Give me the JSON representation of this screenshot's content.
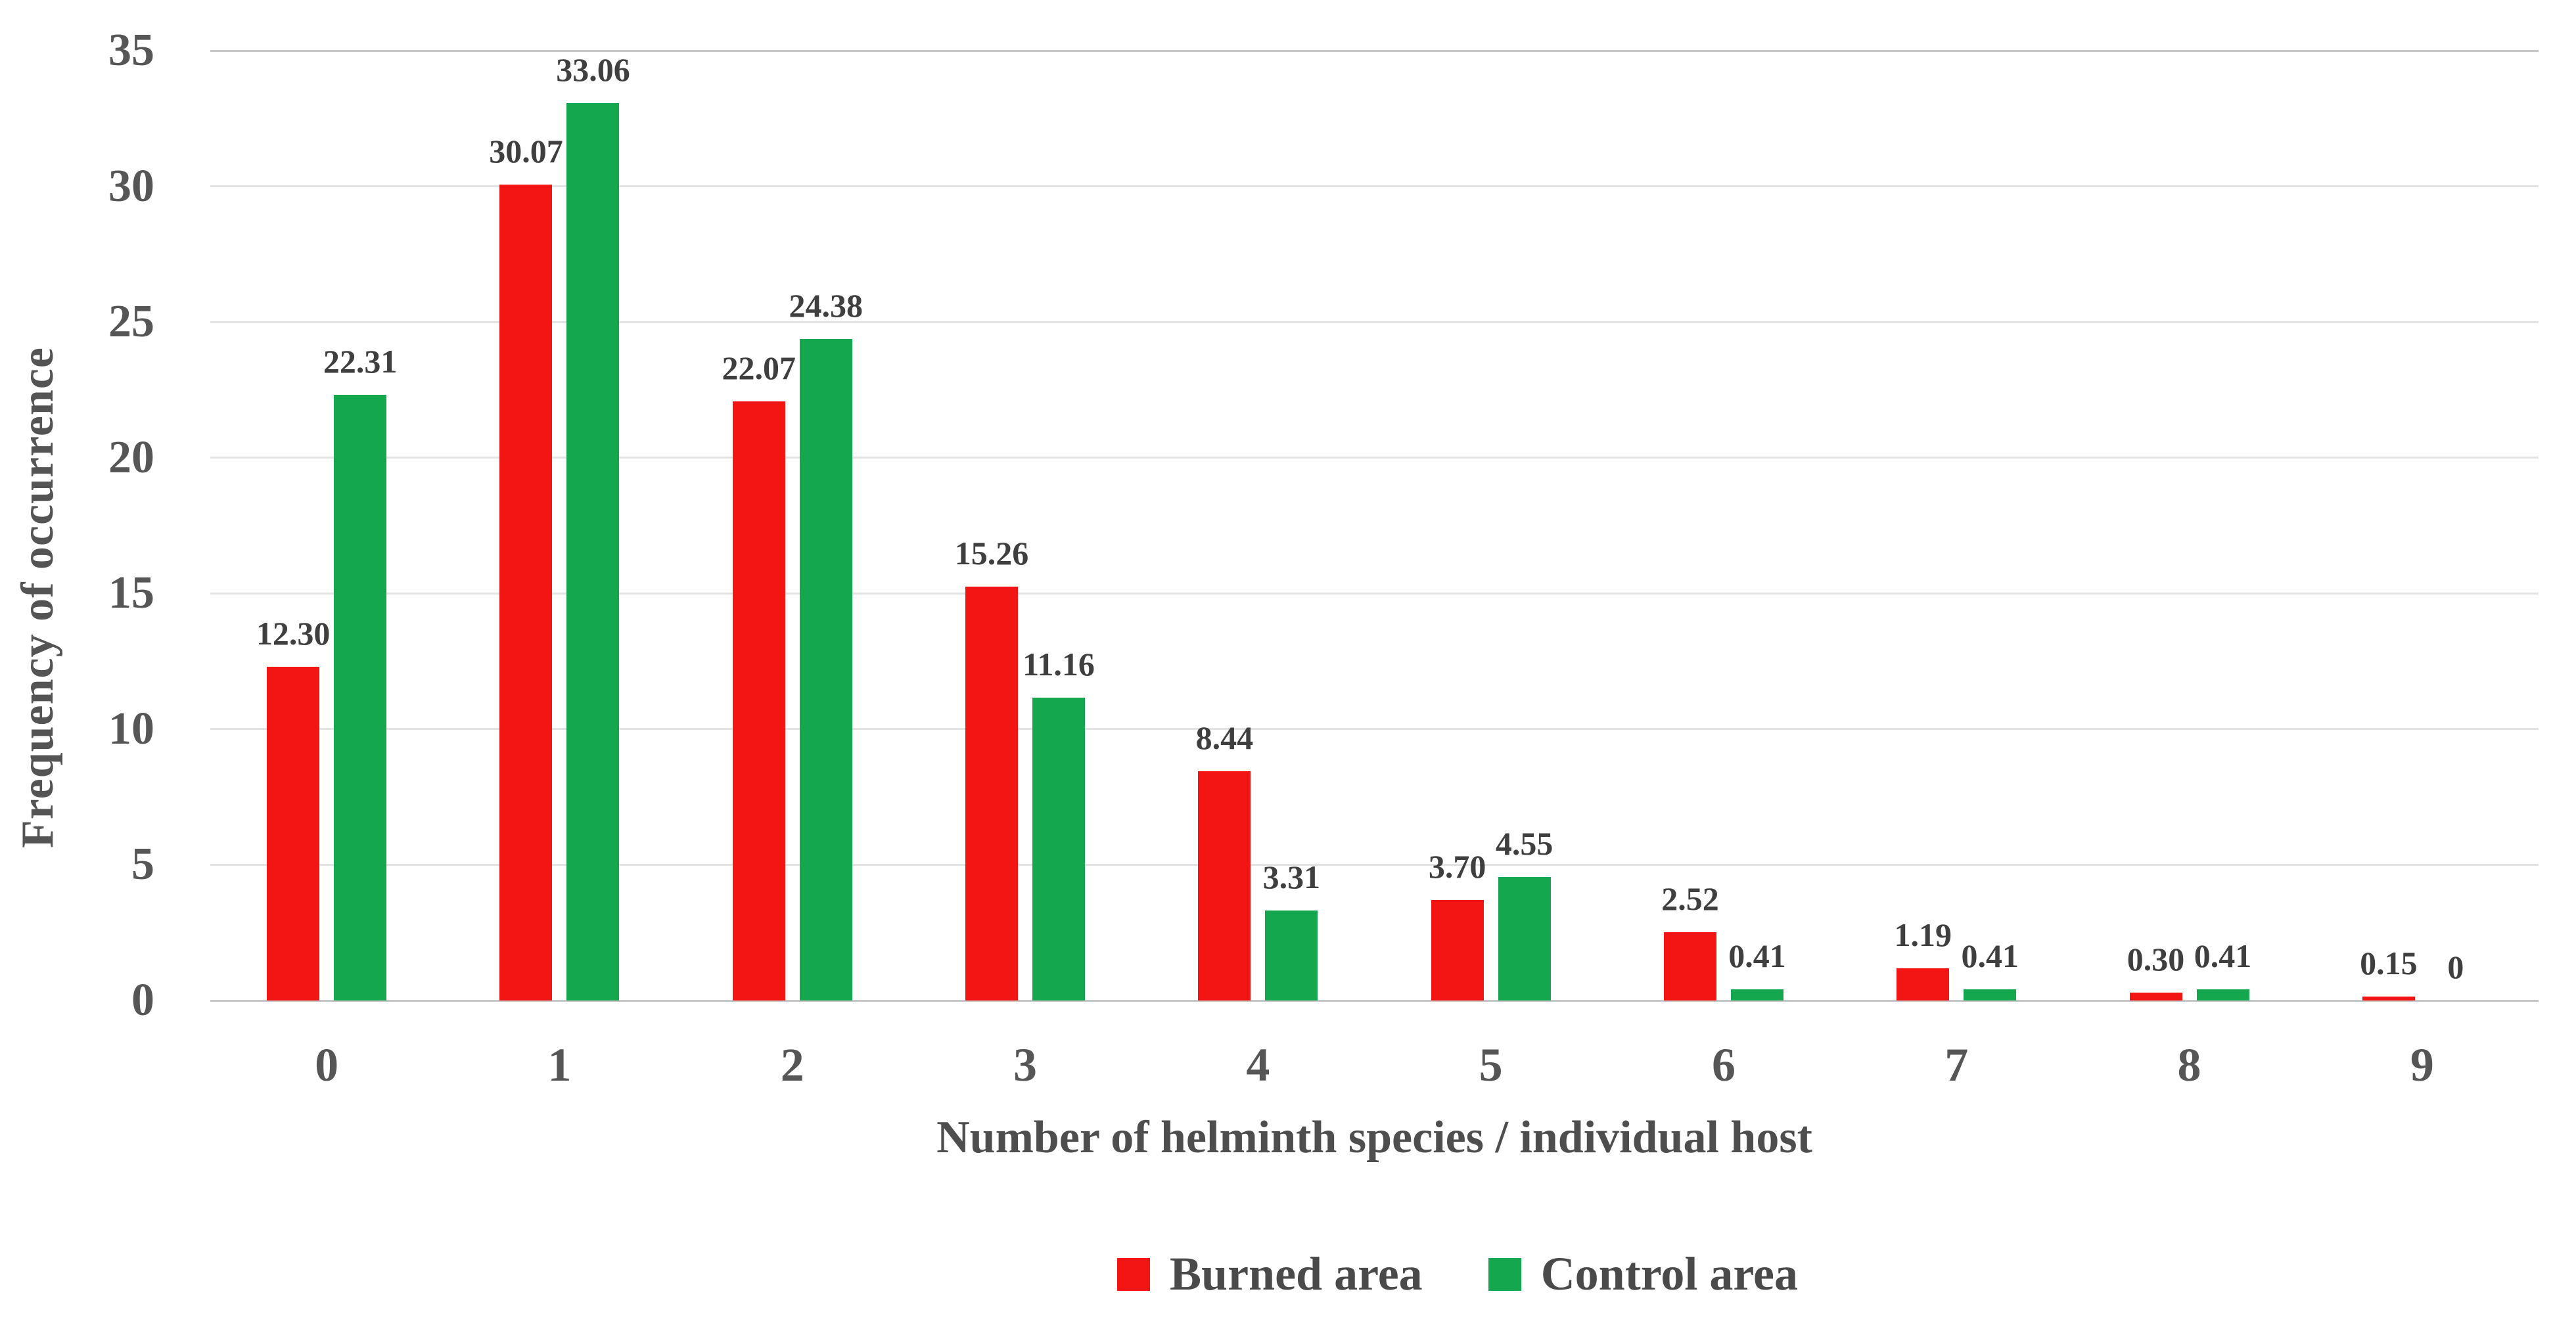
{
  "chart_data": {
    "type": "bar",
    "title": "",
    "xlabel": "Number of helminth species / individual host",
    "ylabel": "Frequency of occurrence",
    "categories": [
      "0",
      "1",
      "2",
      "3",
      "4",
      "5",
      "6",
      "7",
      "8",
      "9"
    ],
    "series": [
      {
        "name": "Burned area",
        "color": "#F31414",
        "values": [
          12.3,
          30.07,
          22.07,
          15.26,
          8.44,
          3.7,
          2.52,
          1.19,
          0.3,
          0.15
        ],
        "labels": [
          "12.30",
          "30.07",
          "22.07",
          "15.26",
          "8.44",
          "3.70",
          "2.52",
          "1.19",
          "0.30",
          "0.15"
        ]
      },
      {
        "name": "Control area",
        "color": "#14A74D",
        "values": [
          22.31,
          33.06,
          24.38,
          11.16,
          3.31,
          4.55,
          0.41,
          0.41,
          0.41,
          0
        ],
        "labels": [
          "22.31",
          "33.06",
          "24.38",
          "11.16",
          "3.31",
          "4.55",
          "0.41",
          "0.41",
          "0.41",
          "0"
        ]
      }
    ],
    "ylim": [
      0,
      35
    ],
    "ytick_step": 5,
    "yticks": [
      "0",
      "5",
      "10",
      "15",
      "20",
      "25",
      "30",
      "35"
    ],
    "grid": true,
    "gridline_color": "#e3e3e3",
    "axis_line_color": "#c6c6c6",
    "legend_position": "bottom"
  }
}
